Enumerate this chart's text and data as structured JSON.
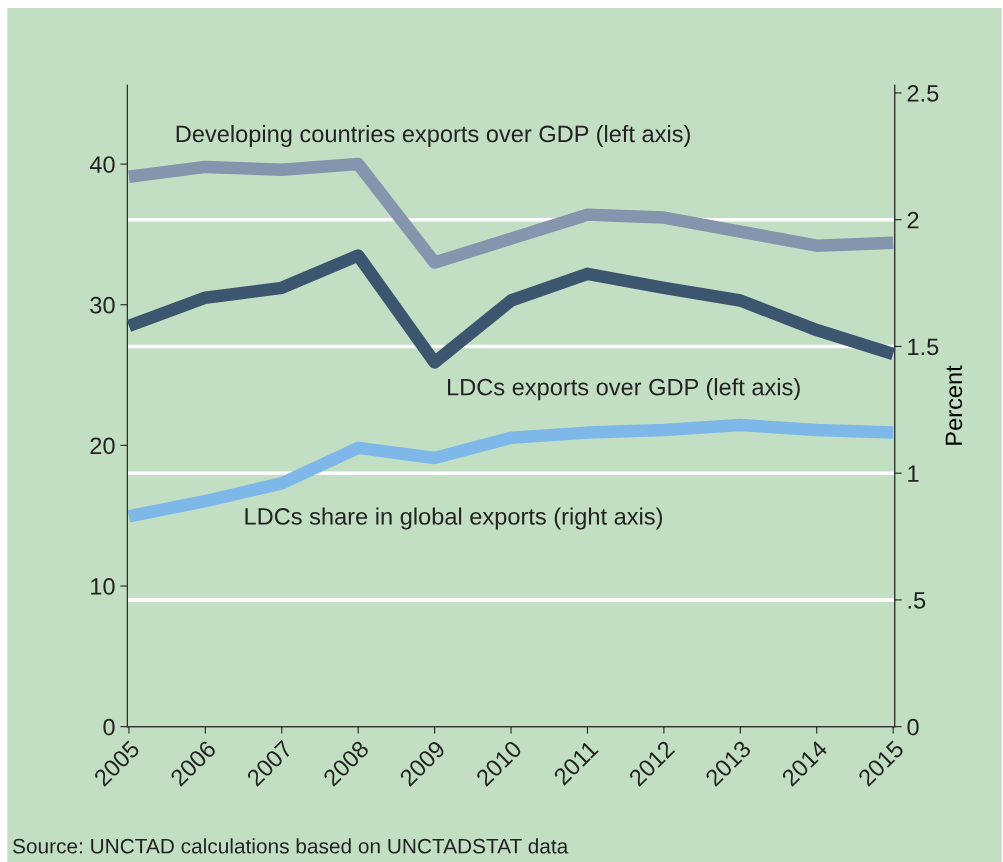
{
  "chart_data": {
    "type": "line",
    "categories": [
      "2005",
      "2006",
      "2007",
      "2008",
      "2009",
      "2010",
      "2011",
      "2012",
      "2013",
      "2014",
      "2015"
    ],
    "series": [
      {
        "name": "Developing countries exports over GDP (left axis)",
        "color": "#8495ad",
        "values": [
          39.1,
          39.8,
          39.6,
          40.0,
          33.0,
          34.7,
          36.4,
          36.2,
          35.2,
          34.2,
          34.4
        ]
      },
      {
        "name": "LDCs exports over GDP (left axis)",
        "color": "#3d5670",
        "values": [
          28.5,
          30.5,
          31.2,
          33.5,
          25.9,
          30.3,
          32.2,
          31.2,
          30.3,
          28.2,
          26.5
        ]
      },
      {
        "name": "LDCs share in global exports (right axis)",
        "color": "#7db8e8",
        "axis": "y2",
        "values": [
          0.83,
          0.89,
          0.96,
          1.1,
          1.06,
          1.14,
          1.16,
          1.17,
          1.19,
          1.17,
          1.16
        ]
      }
    ],
    "ylim": [
      0,
      45.6
    ],
    "yticks": [
      0,
      10,
      20,
      30,
      40
    ],
    "y2lim": [
      0,
      2.53
    ],
    "y2ticks": [
      0,
      {
        "value": 0.5,
        "label": ".5"
      },
      1,
      1.5,
      2,
      2.5
    ],
    "y2label": "Percent",
    "grid": "y",
    "legend": false,
    "marker": "none",
    "line_style": "solid",
    "annotations": [
      "Source: UNCTAD calculations based on UNCTADSTAT data"
    ]
  }
}
